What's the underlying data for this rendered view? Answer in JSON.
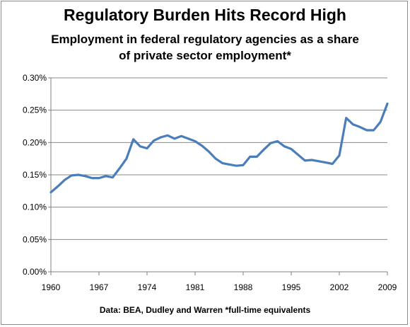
{
  "chart_data": {
    "type": "line",
    "title": "Regulatory Burden Hits Record High",
    "subtitle_lines": [
      "Employment in federal regulatory agencies as a share",
      "of private sector employment*"
    ],
    "xlabel": "",
    "ylabel": "",
    "x_tick_labels": [
      "1960",
      "1967",
      "1974",
      "1981",
      "1988",
      "1995",
      "2002",
      "2009"
    ],
    "x_ticks": [
      1960,
      1967,
      1974,
      1981,
      1988,
      1995,
      2002,
      2009
    ],
    "y_tick_labels": [
      "0.00%",
      "0.05%",
      "0.10%",
      "0.15%",
      "0.20%",
      "0.25%",
      "0.30%"
    ],
    "y_ticks": [
      0.0,
      0.05,
      0.1,
      0.15,
      0.2,
      0.25,
      0.3
    ],
    "xlim": [
      1960,
      2009
    ],
    "ylim": [
      0,
      0.3
    ],
    "grid": "horizontal",
    "line_color": "#4a7ebb",
    "series": [
      {
        "x": [
          1960,
          1961,
          1962,
          1963,
          1964,
          1965,
          1966,
          1967,
          1968,
          1969,
          1970,
          1971,
          1972,
          1973,
          1974,
          1975,
          1976,
          1977,
          1978,
          1979,
          1980,
          1981,
          1982,
          1983,
          1984,
          1985,
          1986,
          1987,
          1988,
          1989,
          1990,
          1991,
          1992,
          1993,
          1994,
          1995,
          1996,
          1997,
          1998,
          1999,
          2000,
          2001,
          2002,
          2003,
          2004,
          2005,
          2006,
          2007,
          2008,
          2009
        ],
        "values": [
          0.123,
          0.132,
          0.142,
          0.149,
          0.15,
          0.148,
          0.145,
          0.145,
          0.148,
          0.146,
          0.16,
          0.175,
          0.205,
          0.194,
          0.191,
          0.203,
          0.208,
          0.211,
          0.206,
          0.21,
          0.206,
          0.202,
          0.195,
          0.186,
          0.175,
          0.168,
          0.166,
          0.164,
          0.165,
          0.178,
          0.178,
          0.189,
          0.199,
          0.202,
          0.194,
          0.19,
          0.181,
          0.172,
          0.173,
          0.171,
          0.169,
          0.167,
          0.18,
          0.238,
          0.228,
          0.224,
          0.219,
          0.219,
          0.232,
          0.26
        ]
      }
    ],
    "source_note": "Data: BEA, Dudley and Warren   *full-time equivalents"
  }
}
